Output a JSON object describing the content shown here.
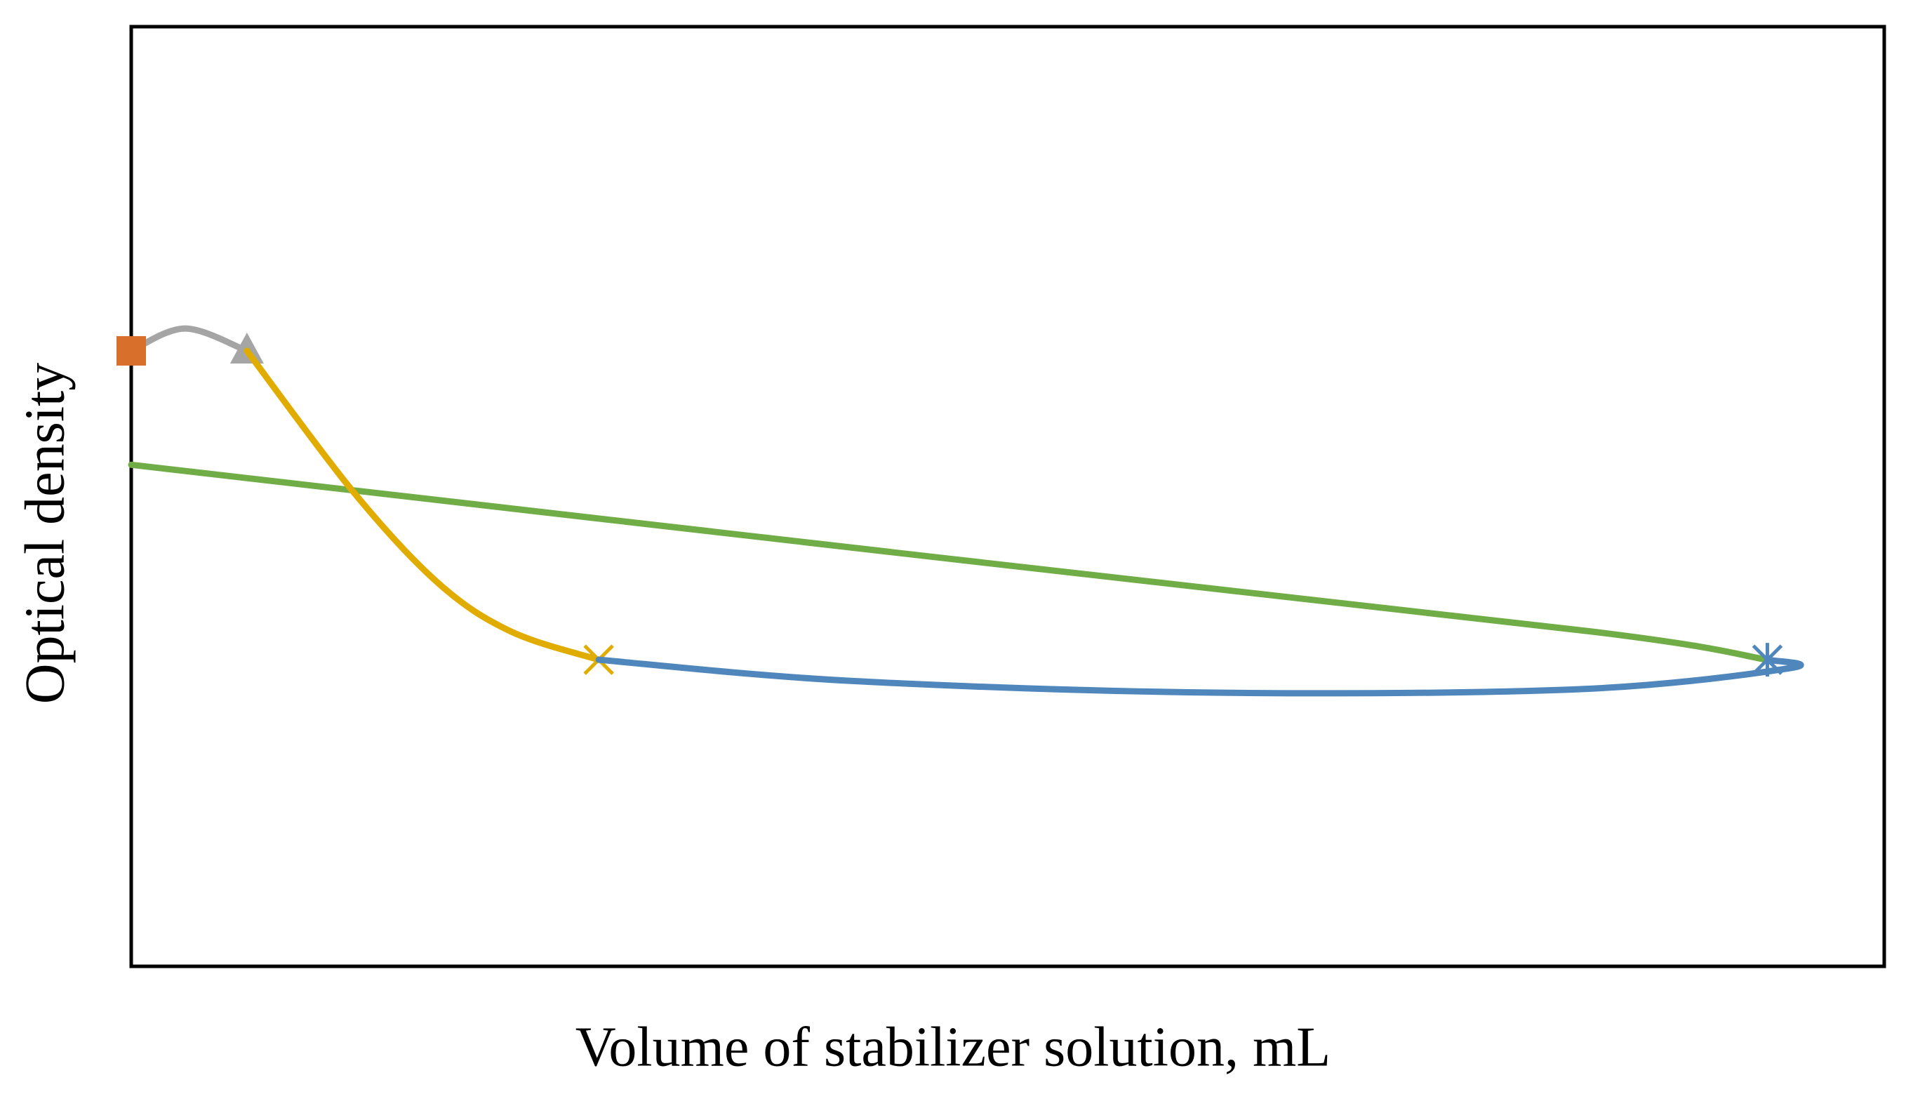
{
  "chart_data": {
    "type": "scatter",
    "xlabel": "Volume of stabilizer solution, mL",
    "ylabel": "Optical density",
    "xlim": [
      0,
      15
    ],
    "ylim": [
      0,
      8
    ],
    "smooth": true,
    "series": [
      {
        "color": "#70ad47",
        "x": [
          0,
          7,
          12.5,
          14
        ],
        "values": [
          4.27,
          3.47,
          2.85,
          2.61
        ]
      },
      {
        "color": "#a5a5a5",
        "marker": "triangle",
        "x": [
          0,
          0.46,
          0.99
        ],
        "values": [
          5.24,
          5.43,
          5.24
        ]
      },
      {
        "color": "#e0ac00",
        "marker": "x",
        "x": [
          0.99,
          1.9,
          2.63,
          3.25,
          4
        ],
        "values": [
          5.24,
          4.04,
          3.26,
          2.85,
          2.61
        ]
      },
      {
        "color": "#4f87bd",
        "marker": "asterisk",
        "x": [
          4,
          6.16,
          9.28,
          12.4,
          14.2,
          14
        ],
        "values": [
          2.61,
          2.43,
          2.33,
          2.36,
          2.54,
          2.61
        ]
      },
      {
        "color": "#d8702c",
        "marker": "square",
        "x": [
          0
        ],
        "values": [
          5.24
        ]
      }
    ]
  }
}
